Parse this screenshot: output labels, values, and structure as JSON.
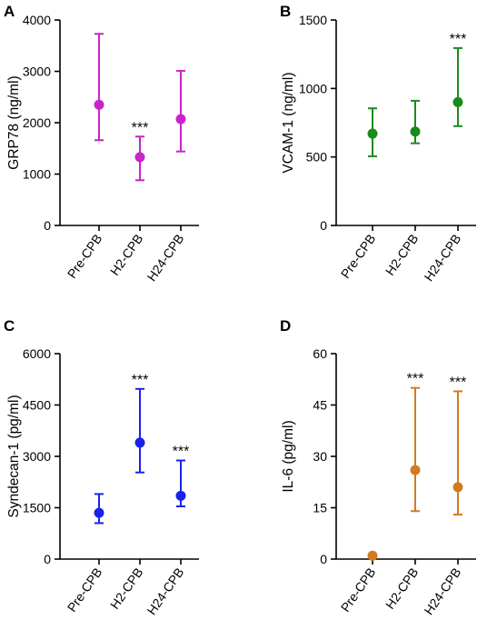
{
  "chart_data": [
    {
      "panel": "A",
      "type": "scatter",
      "ylabel": "GRP78 (ng/ml)",
      "ylim": [
        0,
        4000
      ],
      "yticks": [
        "0",
        "1000",
        "2000",
        "3000",
        "4000"
      ],
      "categories": [
        "Pre-CPB",
        "H2-CPB",
        "H24-CPB"
      ],
      "values": [
        2350,
        1330,
        2070
      ],
      "error_low": [
        1660,
        880,
        1440
      ],
      "error_high": [
        3730,
        1730,
        3010
      ],
      "significance": [
        "",
        "***",
        ""
      ],
      "color": "#cc22cc"
    },
    {
      "panel": "B",
      "type": "scatter",
      "ylabel": "VCAM-1 (ng/ml)",
      "ylim": [
        0,
        1500
      ],
      "yticks": [
        "0",
        "500",
        "1000",
        "1500"
      ],
      "categories": [
        "Pre-CPB",
        "H2-CPB",
        "H24-CPB"
      ],
      "values": [
        670,
        685,
        900
      ],
      "error_low": [
        505,
        600,
        725
      ],
      "error_high": [
        855,
        910,
        1295
      ],
      "significance": [
        "",
        "",
        "***"
      ],
      "color": "#1a8a1a"
    },
    {
      "panel": "C",
      "type": "scatter",
      "ylabel": "Syndecan-1 (pg/ml)",
      "ylim": [
        0,
        6000
      ],
      "yticks": [
        "0",
        "1500",
        "3000",
        "4500",
        "6000"
      ],
      "categories": [
        "Pre-CPB",
        "H2-CPB",
        "H24-CPB"
      ],
      "values": [
        1350,
        3400,
        1850
      ],
      "error_low": [
        1050,
        2530,
        1540
      ],
      "error_high": [
        1900,
        4970,
        2880
      ],
      "significance": [
        "",
        "***",
        "***"
      ],
      "color": "#1a22ee"
    },
    {
      "panel": "D",
      "type": "scatter",
      "ylabel": "IL-6 (pg/ml)",
      "ylim": [
        0,
        60
      ],
      "yticks": [
        "0",
        "15",
        "30",
        "45",
        "60"
      ],
      "categories": [
        "Pre-CPB",
        "H2-CPB",
        "H24-CPB"
      ],
      "values": [
        1,
        26,
        21
      ],
      "error_low": [
        1,
        14,
        13
      ],
      "error_high": [
        1,
        50,
        49
      ],
      "significance": [
        "",
        "***",
        "***"
      ],
      "color": "#d27a22"
    }
  ]
}
